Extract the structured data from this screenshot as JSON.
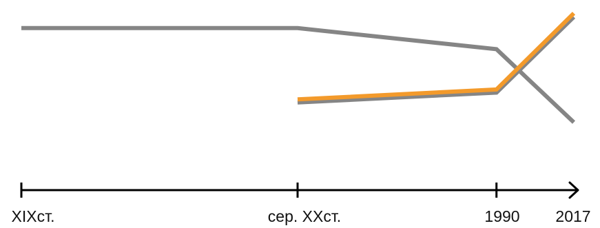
{
  "chart_data": {
    "type": "line",
    "title": "",
    "xlabel": "",
    "ylabel": "",
    "grid": false,
    "legend": "none",
    "x_categories": [
      "XIXст.",
      "сер. XXст.",
      "1990",
      "2017"
    ],
    "x_positions": [
      0,
      1,
      1.72,
      2
    ],
    "ylim": [
      0,
      1
    ],
    "series": [
      {
        "color": "#858585",
        "points": [
          [
            0,
            0.84
          ],
          [
            1,
            0.84
          ],
          [
            1.72,
            0.67
          ],
          [
            2,
            0.08
          ]
        ]
      },
      {
        "color": "#858585",
        "points": [
          [
            1,
            0.24
          ],
          [
            1.72,
            0.32
          ],
          [
            2,
            0.93
          ]
        ],
        "shadow": true
      },
      {
        "color": "#f39a2b",
        "points": [
          [
            1,
            0.265
          ],
          [
            1.72,
            0.345
          ],
          [
            2,
            0.96
          ]
        ]
      }
    ],
    "axis": {
      "color": "#000000",
      "ticks": [
        "XIXст.",
        "сер. XXст.",
        "1990",
        "2017"
      ]
    }
  }
}
